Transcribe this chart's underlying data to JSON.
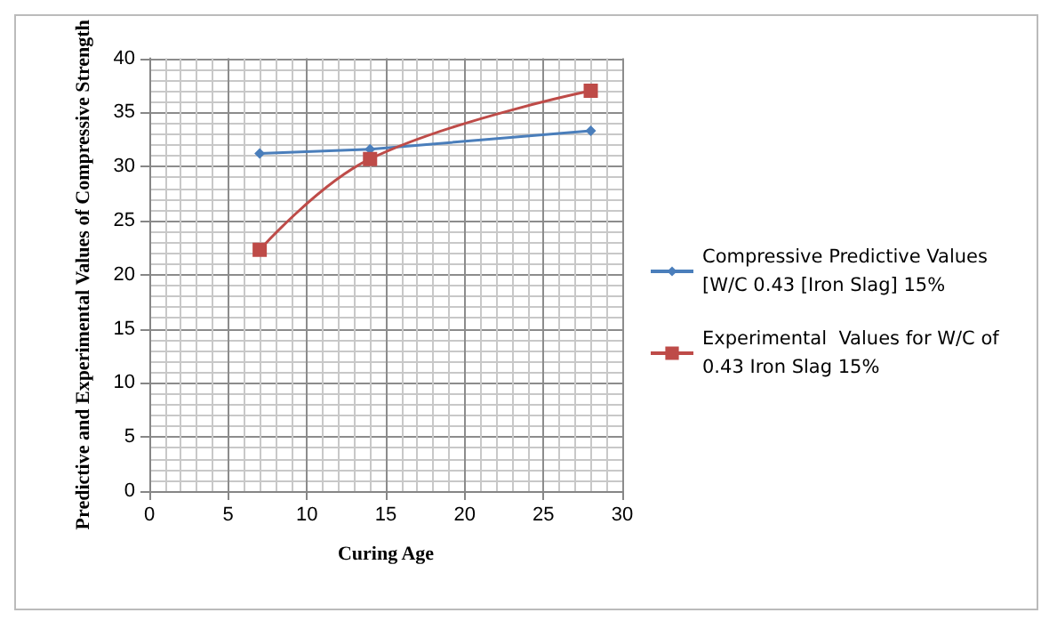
{
  "chart_data": {
    "type": "line",
    "xlabel": "Curing Age",
    "ylabel": "Predictive and Experimental Values of Compressive Strength",
    "x": [
      7,
      14,
      28
    ],
    "series": [
      {
        "name": "Compressive Predictive Values [W/C 0.43 [Iron Slag] 15%",
        "color": "#4a7ebb",
        "values": [
          31.2,
          31.6,
          33.3
        ],
        "marker": "diamond"
      },
      {
        "name": "Experimental  Values for W/C of 0.43 Iron Slag 15%",
        "color": "#be4b48",
        "values": [
          22.3,
          30.7,
          37.0
        ],
        "marker": "square"
      }
    ],
    "xlim": [
      0,
      30
    ],
    "xticks": [
      0,
      5,
      10,
      15,
      20,
      25,
      30
    ],
    "ylim": [
      0,
      40
    ],
    "yticks": [
      0,
      5,
      10,
      15,
      20,
      25,
      30,
      35,
      40
    ],
    "grid": true,
    "legend": "right",
    "line_style": "solid"
  }
}
